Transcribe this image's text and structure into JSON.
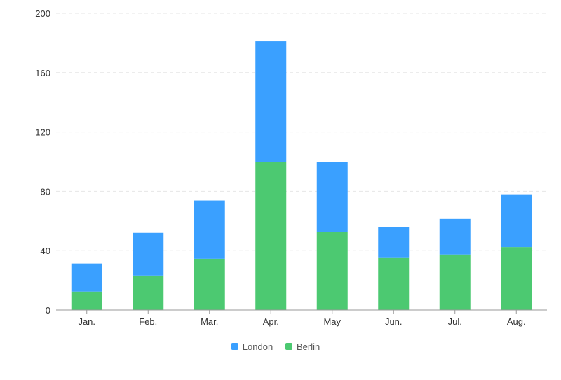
{
  "chart_data": {
    "type": "bar",
    "stacked": true,
    "categories": [
      "Jan.",
      "Feb.",
      "Mar.",
      "Apr.",
      "May",
      "Jun.",
      "Jul.",
      "Aug."
    ],
    "series": [
      {
        "name": "Berlin",
        "values": [
          12.4,
          23.2,
          34.5,
          99.7,
          52.6,
          35.5,
          37.4,
          42.4
        ],
        "color": "#4cc971"
      },
      {
        "name": "London",
        "values": [
          18.9,
          28.8,
          39.3,
          81.4,
          47,
          20.3,
          24,
          35.6
        ],
        "color": "#3aa0ff"
      }
    ],
    "legend_order": [
      "London",
      "Berlin"
    ],
    "ylim": [
      0,
      200
    ],
    "yticks": [
      0,
      40,
      80,
      120,
      160,
      200
    ],
    "grid": true,
    "legend_position": "bottom-center",
    "title": "",
    "xlabel": "",
    "ylabel": ""
  }
}
